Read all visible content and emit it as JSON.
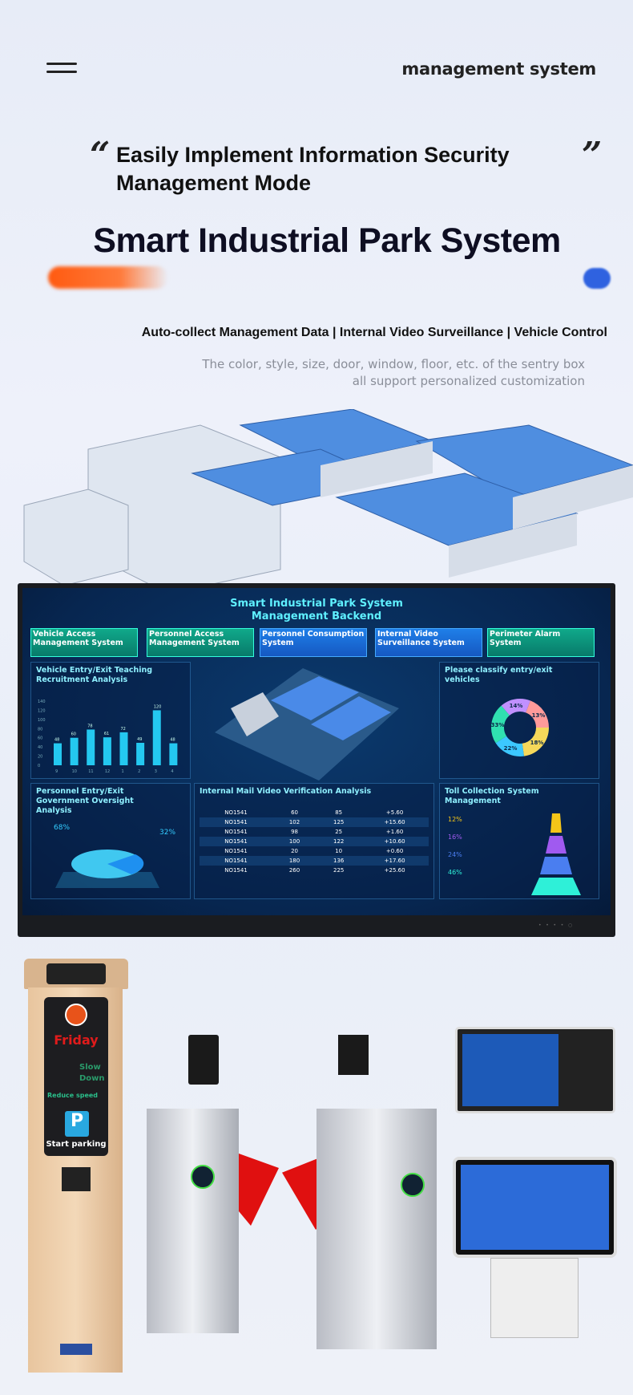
{
  "header": {
    "menu_icon": "hamburger-icon",
    "brand": "management system"
  },
  "hero": {
    "quote_open": "“",
    "quote_close": "”",
    "headline_line1": "Easily Implement Information Security",
    "headline_line2": "Management Mode",
    "title": "Smart Industrial Park System",
    "features": "Auto-collect Management Data | Internal Video Surveillance | Vehicle Control",
    "note_line1": "The color, style, size, door, window, floor, etc. of the sentry box",
    "note_line2": "all support personalized customization",
    "accent_orange": "#ff5a10",
    "accent_blue": "#2f62e0"
  },
  "dashboard": {
    "title_line1": "Smart Industrial Park System",
    "title_line2": "Management Backend",
    "modules": [
      {
        "label": "Vehicle Access Management System",
        "color": "green"
      },
      {
        "label": "Personnel Access Management System",
        "color": "green"
      },
      {
        "label": "Personnel Consumption System",
        "color": "blue"
      },
      {
        "label": "Internal Video Surveillance System",
        "color": "blue"
      },
      {
        "label": "Perimeter Alarm System",
        "color": "green"
      }
    ],
    "panels": {
      "vehicle_analysis": "Vehicle Entry/Exit Teaching Recruitment Analysis",
      "classify": "Please classify entry/exit vehicles",
      "personnel": "Personnel Entry/Exit Government Oversight Analysis",
      "mail_video": "Internal Mail Video Verification Analysis",
      "toll": "Toll Collection System Management"
    },
    "bar_chart": {
      "type": "bar",
      "categories": [
        "9",
        "10",
        "11",
        "12",
        "1",
        "2",
        "3",
        "4"
      ],
      "values": [
        48,
        60,
        78,
        61,
        72,
        49,
        120,
        48
      ],
      "ylim": [
        0,
        140
      ],
      "yticks": [
        "0",
        "20",
        "40",
        "60",
        "80",
        "100",
        "120",
        "140"
      ]
    },
    "donut": {
      "labels": [
        "18%",
        "22%",
        "33%",
        "14%",
        "13%"
      ]
    },
    "personnel_pie": {
      "internal": "68%",
      "external": "32%"
    },
    "table_rows": [
      [
        "NO1541",
        "60",
        "85",
        "+5.60"
      ],
      [
        "NO1541",
        "102",
        "125",
        "+15.60"
      ],
      [
        "NO1541",
        "98",
        "25",
        "+1.60"
      ],
      [
        "NO1541",
        "100",
        "122",
        "+10.60"
      ],
      [
        "NO1541",
        "20",
        "10",
        "+0.60"
      ],
      [
        "NO1541",
        "180",
        "136",
        "+17.60"
      ],
      [
        "NO1541",
        "260",
        "225",
        "+25.60"
      ]
    ],
    "toll_levels": [
      {
        "pct": "12%",
        "color": "#f5c518"
      },
      {
        "pct": "16%",
        "color": "#a05af0"
      },
      {
        "pct": "24%",
        "color": "#4a7ef0"
      },
      {
        "pct": "46%",
        "color": "#2ef0d8"
      }
    ]
  },
  "kiosk": {
    "day": "Friday",
    "reduce": "Reduce speed",
    "slow": "Slow",
    "down": "Down",
    "start": "Start parking",
    "parking_icon": "parking-icon"
  }
}
